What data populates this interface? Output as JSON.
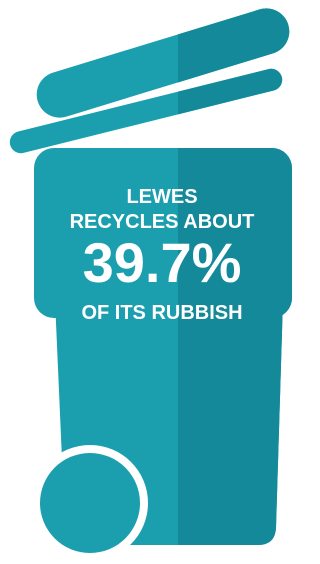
{
  "infographic": {
    "lines": [
      "LEWES",
      "RECYCLES ABOUT",
      "39.7%",
      "OF ITS RUBBISH"
    ]
  }
}
